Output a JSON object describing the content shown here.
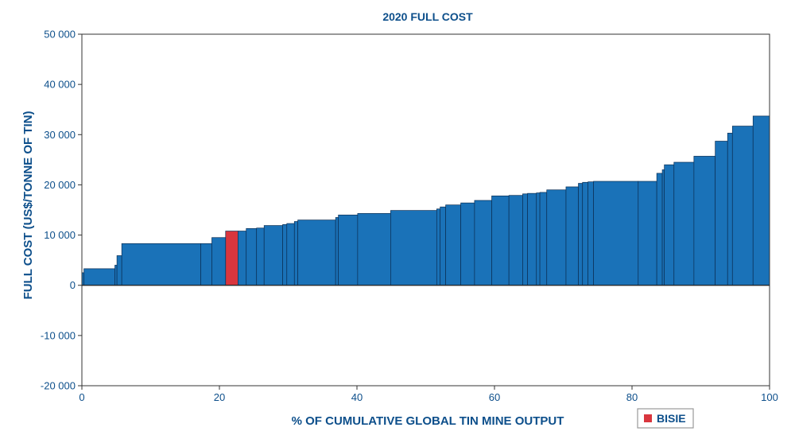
{
  "chart_data": {
    "type": "bar",
    "title": "2020 FULL COST",
    "xlabel": "% OF CUMULATIVE GLOBAL TIN MINE OUTPUT",
    "ylabel": "FULL COST (US$/TONNE OF TIN)",
    "xlim": [
      0,
      100
    ],
    "ylim": [
      -20000,
      50000
    ],
    "x_ticks": [
      {
        "value": 0,
        "label": "0"
      },
      {
        "value": 20,
        "label": "20"
      },
      {
        "value": 40,
        "label": "40"
      },
      {
        "value": 60,
        "label": "60"
      },
      {
        "value": 80,
        "label": "80"
      },
      {
        "value": 100,
        "label": "100"
      }
    ],
    "y_ticks": [
      {
        "value": 50000,
        "label": "50 000"
      },
      {
        "value": 40000,
        "label": "40 000"
      },
      {
        "value": 30000,
        "label": "30 000"
      },
      {
        "value": 20000,
        "label": "20 000"
      },
      {
        "value": 10000,
        "label": "10 000"
      },
      {
        "value": 0,
        "label": "0"
      },
      {
        "value": -10000,
        "label": "-10 000"
      },
      {
        "value": -20000,
        "label": "-20 000"
      }
    ],
    "grid": false,
    "legend_position": "bottom-right",
    "colors": {
      "default": "#1a72b8",
      "highlight": "#d9363e",
      "outline": "#0b2f55"
    },
    "legend": [
      {
        "name": "BISIE",
        "color": "#d9363e"
      }
    ],
    "bars": [
      {
        "x0": 0.0,
        "x1": 0.3,
        "value": 2500
      },
      {
        "x0": 0.3,
        "x1": 4.8,
        "value": 3300
      },
      {
        "x0": 4.8,
        "x1": 5.1,
        "value": 4000
      },
      {
        "x0": 5.1,
        "x1": 5.8,
        "value": 5900
      },
      {
        "x0": 5.8,
        "x1": 17.3,
        "value": 8300
      },
      {
        "x0": 17.3,
        "x1": 18.9,
        "value": 8300
      },
      {
        "x0": 18.9,
        "x1": 20.9,
        "value": 9500
      },
      {
        "x0": 20.9,
        "x1": 22.7,
        "value": 10800,
        "highlight": true
      },
      {
        "x0": 22.7,
        "x1": 23.9,
        "value": 10800
      },
      {
        "x0": 23.9,
        "x1": 25.4,
        "value": 11300
      },
      {
        "x0": 25.4,
        "x1": 26.5,
        "value": 11400
      },
      {
        "x0": 26.5,
        "x1": 29.2,
        "value": 11900
      },
      {
        "x0": 29.2,
        "x1": 29.8,
        "value": 12100
      },
      {
        "x0": 29.8,
        "x1": 30.9,
        "value": 12300
      },
      {
        "x0": 30.9,
        "x1": 31.4,
        "value": 12700
      },
      {
        "x0": 31.4,
        "x1": 36.9,
        "value": 13000
      },
      {
        "x0": 36.9,
        "x1": 37.3,
        "value": 13500
      },
      {
        "x0": 37.3,
        "x1": 40.1,
        "value": 14000
      },
      {
        "x0": 40.1,
        "x1": 44.9,
        "value": 14300
      },
      {
        "x0": 44.9,
        "x1": 51.6,
        "value": 14900
      },
      {
        "x0": 51.6,
        "x1": 52.1,
        "value": 15200
      },
      {
        "x0": 52.1,
        "x1": 52.9,
        "value": 15600
      },
      {
        "x0": 52.9,
        "x1": 55.1,
        "value": 16000
      },
      {
        "x0": 55.1,
        "x1": 57.1,
        "value": 16400
      },
      {
        "x0": 57.1,
        "x1": 59.6,
        "value": 16900
      },
      {
        "x0": 59.6,
        "x1": 62.1,
        "value": 17800
      },
      {
        "x0": 62.1,
        "x1": 64.1,
        "value": 17900
      },
      {
        "x0": 64.1,
        "x1": 64.8,
        "value": 18200
      },
      {
        "x0": 64.8,
        "x1": 66.1,
        "value": 18300
      },
      {
        "x0": 66.1,
        "x1": 66.6,
        "value": 18400
      },
      {
        "x0": 66.6,
        "x1": 67.6,
        "value": 18500
      },
      {
        "x0": 67.6,
        "x1": 70.4,
        "value": 19000
      },
      {
        "x0": 70.4,
        "x1": 72.2,
        "value": 19600
      },
      {
        "x0": 72.2,
        "x1": 72.8,
        "value": 20300
      },
      {
        "x0": 72.8,
        "x1": 73.6,
        "value": 20500
      },
      {
        "x0": 73.6,
        "x1": 74.4,
        "value": 20600
      },
      {
        "x0": 74.4,
        "x1": 80.9,
        "value": 20700
      },
      {
        "x0": 80.9,
        "x1": 83.6,
        "value": 20700
      },
      {
        "x0": 83.6,
        "x1": 84.4,
        "value": 22300
      },
      {
        "x0": 84.4,
        "x1": 84.7,
        "value": 23000
      },
      {
        "x0": 84.7,
        "x1": 86.1,
        "value": 24000
      },
      {
        "x0": 86.1,
        "x1": 89.0,
        "value": 24500
      },
      {
        "x0": 89.0,
        "x1": 92.1,
        "value": 25700
      },
      {
        "x0": 92.1,
        "x1": 93.9,
        "value": 28700
      },
      {
        "x0": 93.9,
        "x1": 94.6,
        "value": 30300
      },
      {
        "x0": 94.6,
        "x1": 97.6,
        "value": 31700
      },
      {
        "x0": 97.6,
        "x1": 100.0,
        "value": 33700
      }
    ]
  }
}
